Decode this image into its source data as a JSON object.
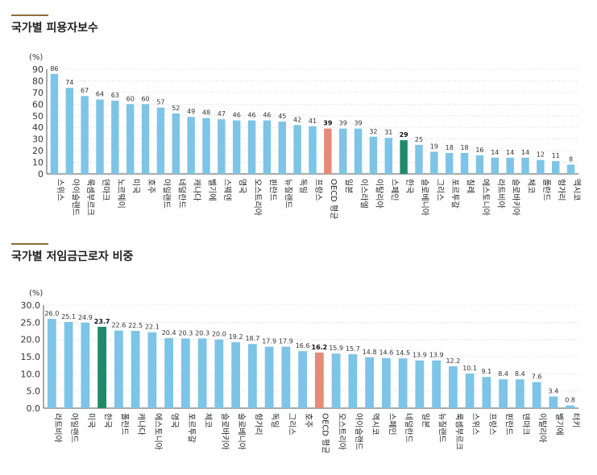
{
  "titles": {
    "chart1": "국가별 피용자보수",
    "chart2": "국가별 저임금근로자 비중"
  },
  "colors": {
    "bar": "#7ec4e6",
    "oecd": "#e58b76",
    "korea": "#1f8a6a",
    "grid": "#c8c8c8",
    "axis": "#555555"
  },
  "chart_data": [
    {
      "type": "bar",
      "title": "국가별 피용자보수",
      "unit_label": "(%)",
      "ylim": [
        0,
        90
      ],
      "yticks": [
        0,
        10,
        20,
        30,
        40,
        50,
        60,
        70,
        80,
        90
      ],
      "grid": true,
      "categories": [
        "스위스",
        "아이슬랜드",
        "룩셈부르크",
        "덴마크",
        "노르웨이",
        "미국",
        "호주",
        "아일랜드",
        "네덜란드",
        "캐나다",
        "벨기에",
        "스웨덴",
        "영국",
        "오스트리아",
        "핀란드",
        "뉴질랜드",
        "독일",
        "프랑스",
        "OECD 평균",
        "일본",
        "이스라엘",
        "이탈리아",
        "스페인",
        "한국",
        "슬로베니아",
        "그리스",
        "포르투갈",
        "칠레",
        "에스토니아",
        "라트비아",
        "슬로바키아",
        "체코",
        "폴란드",
        "헝가리",
        "멕시코"
      ],
      "values": [
        86,
        74,
        67,
        64,
        63,
        60,
        60,
        57,
        52,
        49,
        48,
        47,
        46,
        46,
        46,
        45,
        42,
        41,
        39,
        39,
        39,
        32,
        31,
        29,
        25,
        19,
        18,
        18,
        16,
        14,
        14,
        14,
        12,
        11,
        8
      ],
      "value_labels": [
        "86",
        "74",
        "67",
        "64",
        "63",
        "60",
        "60",
        "57",
        "52",
        "49",
        "48",
        "47",
        "46",
        "46",
        "46",
        "45",
        "42",
        "41",
        "39",
        "39",
        "39",
        "32",
        "31",
        "29",
        "25",
        "19",
        "18",
        "18",
        "16",
        "14",
        "14",
        "14",
        "12",
        "11",
        "8"
      ],
      "highlight": {
        "OECD 평균": "oecd",
        "한국": "korea"
      }
    },
    {
      "type": "bar",
      "title": "국가별 저임금근로자 비중",
      "unit_label": "(%)",
      "ylim": [
        0,
        30
      ],
      "yticks": [
        "0.0",
        "5.0",
        "10.0",
        "15.0",
        "20.0",
        "25.0",
        "30.0"
      ],
      "grid": true,
      "categories": [
        "라트비아",
        "아일랜드",
        "미국",
        "한국",
        "폴란드",
        "캐나다",
        "에스토니아",
        "영국",
        "포르투갈",
        "체코",
        "슬로바키아",
        "슬로베니아",
        "헝가리",
        "독일",
        "그리스",
        "호주",
        "OECD 평균",
        "오스트리아",
        "아이슬랜드",
        "멕시코",
        "스페인",
        "네덜란드",
        "일본",
        "뉴질랜드",
        "룩셈부르크",
        "스위스",
        "프랑스",
        "핀란드",
        "덴마크",
        "이탈리아",
        "벨기에",
        "터키"
      ],
      "values": [
        26.0,
        25.1,
        24.9,
        23.7,
        22.6,
        22.5,
        22.1,
        20.4,
        20.3,
        20.3,
        20.0,
        19.2,
        18.7,
        17.9,
        17.9,
        16.6,
        16.2,
        15.9,
        15.7,
        14.8,
        14.6,
        14.5,
        13.9,
        13.9,
        12.2,
        10.1,
        9.1,
        8.4,
        8.4,
        7.6,
        3.4,
        0.8
      ],
      "value_labels": [
        "26.0",
        "25.1",
        "24.9",
        "23.7",
        "22.6",
        "22.5",
        "22.1",
        "20.4",
        "20.3",
        "20.3",
        "20.0",
        "19.2",
        "18.7",
        "17.9",
        "17.9",
        "16.6",
        "16.2",
        "15.9",
        "15.7",
        "14.8",
        "14.6",
        "14.5",
        "13.9",
        "13.9",
        "12.2",
        "10.1",
        "9.1",
        "8.4",
        "8.4",
        "7.6",
        "3.4",
        "0.8"
      ],
      "highlight": {
        "OECD 평균": "oecd",
        "한국": "korea"
      }
    }
  ]
}
